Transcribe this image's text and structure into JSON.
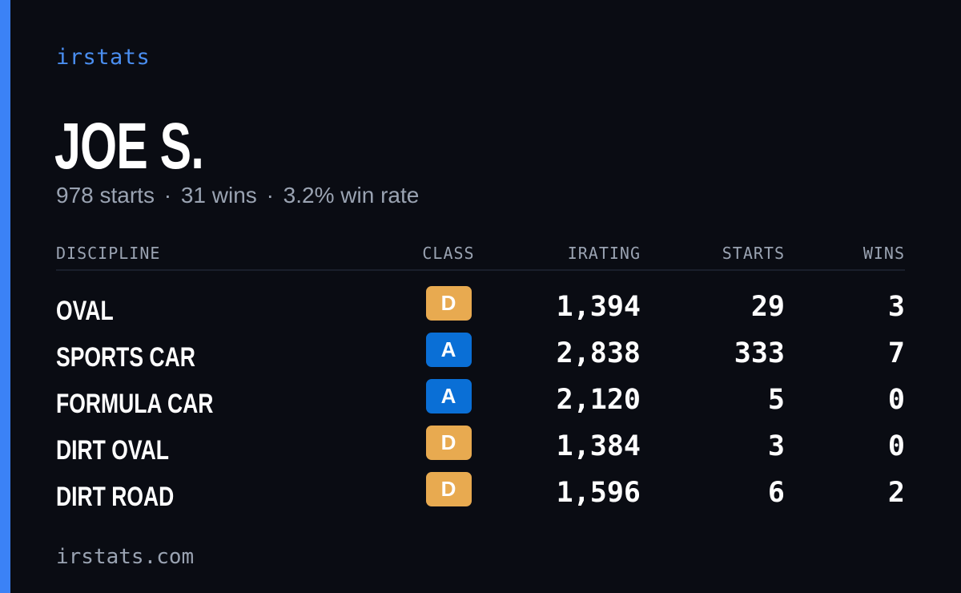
{
  "brand": "irstats",
  "player": {
    "name": "JOE S.",
    "starts_text": "978 starts",
    "wins_text": "31 wins",
    "win_rate_text": "3.2% win rate",
    "separator": "·"
  },
  "table": {
    "headers": {
      "discipline": "DISCIPLINE",
      "class": "CLASS",
      "irating": "IRATING",
      "starts": "STARTS",
      "wins": "WINS"
    },
    "rows": [
      {
        "discipline": "OVAL",
        "class": "D",
        "class_color": "#e8aa50",
        "irating": "1,394",
        "starts": "29",
        "wins": "3"
      },
      {
        "discipline": "SPORTS CAR",
        "class": "A",
        "class_color": "#0a6fd6",
        "irating": "2,838",
        "starts": "333",
        "wins": "7"
      },
      {
        "discipline": "FORMULA CAR",
        "class": "A",
        "class_color": "#0a6fd6",
        "irating": "2,120",
        "starts": "5",
        "wins": "0"
      },
      {
        "discipline": "DIRT OVAL",
        "class": "D",
        "class_color": "#e8aa50",
        "irating": "1,384",
        "starts": "3",
        "wins": "0"
      },
      {
        "discipline": "DIRT ROAD",
        "class": "D",
        "class_color": "#e8aa50",
        "irating": "1,596",
        "starts": "6",
        "wins": "2"
      }
    ]
  },
  "footer": {
    "url": "irstats.com"
  },
  "colors": {
    "accent": "#3b82f6",
    "background": "#0a0c13",
    "muted": "#9aa3b2"
  }
}
